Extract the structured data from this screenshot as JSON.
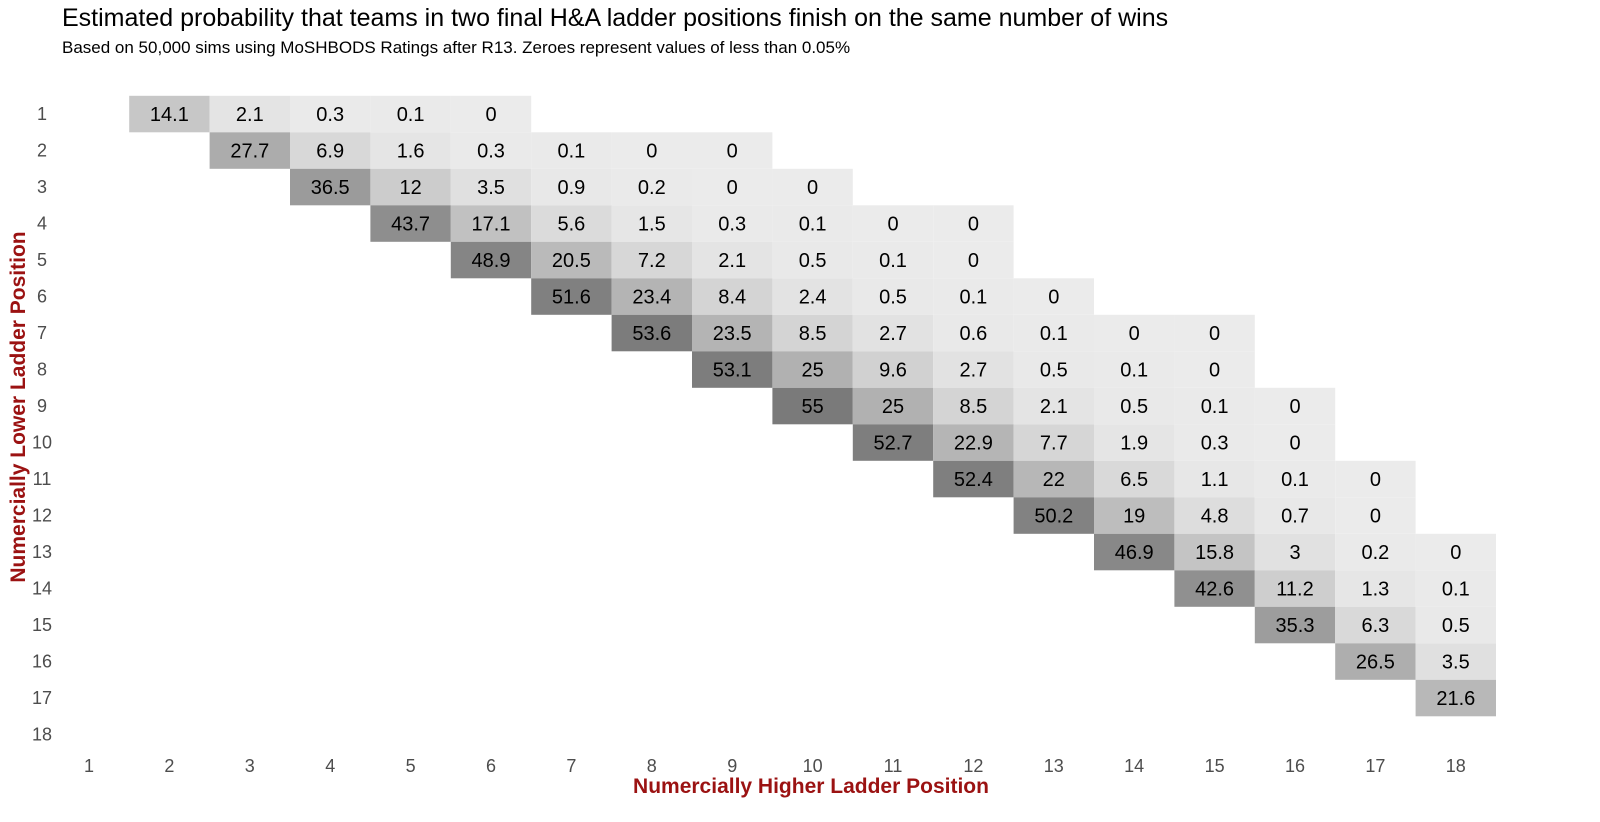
{
  "chart_data": {
    "type": "heatmap",
    "title": "Estimated probability that teams in two final H&A ladder positions finish on the same number of wins",
    "subtitle": "Based on 50,000 sims using MoSHBODS Ratings after R13. Zeroes represent values of less than 0.05%",
    "xlabel": "Numercially Higher Ladder Position",
    "ylabel": "Numercially Lower Ladder Position",
    "x_ticks": [
      "1",
      "2",
      "3",
      "4",
      "5",
      "6",
      "7",
      "8",
      "9",
      "10",
      "11",
      "12",
      "13",
      "14",
      "15",
      "16",
      "17",
      "18"
    ],
    "y_ticks": [
      "1",
      "2",
      "3",
      "4",
      "5",
      "6",
      "7",
      "8",
      "9",
      "10",
      "11",
      "12",
      "13",
      "14",
      "15",
      "16",
      "17",
      "18"
    ],
    "color_scale": {
      "low": "#ebebeb",
      "high": "#7a7a7a"
    },
    "grid": false,
    "legend": "none",
    "cells": [
      {
        "x": 2,
        "y": 1,
        "value": 14.1
      },
      {
        "x": 3,
        "y": 1,
        "value": 2.1
      },
      {
        "x": 4,
        "y": 1,
        "value": 0.3
      },
      {
        "x": 5,
        "y": 1,
        "value": 0.1
      },
      {
        "x": 6,
        "y": 1,
        "value": 0
      },
      {
        "x": 3,
        "y": 2,
        "value": 27.7
      },
      {
        "x": 4,
        "y": 2,
        "value": 6.9
      },
      {
        "x": 5,
        "y": 2,
        "value": 1.6
      },
      {
        "x": 6,
        "y": 2,
        "value": 0.3
      },
      {
        "x": 7,
        "y": 2,
        "value": 0.1
      },
      {
        "x": 8,
        "y": 2,
        "value": 0
      },
      {
        "x": 9,
        "y": 2,
        "value": 0
      },
      {
        "x": 4,
        "y": 3,
        "value": 36.5
      },
      {
        "x": 5,
        "y": 3,
        "value": 12
      },
      {
        "x": 6,
        "y": 3,
        "value": 3.5
      },
      {
        "x": 7,
        "y": 3,
        "value": 0.9
      },
      {
        "x": 8,
        "y": 3,
        "value": 0.2
      },
      {
        "x": 9,
        "y": 3,
        "value": 0
      },
      {
        "x": 10,
        "y": 3,
        "value": 0
      },
      {
        "x": 5,
        "y": 4,
        "value": 43.7
      },
      {
        "x": 6,
        "y": 4,
        "value": 17.1
      },
      {
        "x": 7,
        "y": 4,
        "value": 5.6
      },
      {
        "x": 8,
        "y": 4,
        "value": 1.5
      },
      {
        "x": 9,
        "y": 4,
        "value": 0.3
      },
      {
        "x": 10,
        "y": 4,
        "value": 0.1
      },
      {
        "x": 11,
        "y": 4,
        "value": 0
      },
      {
        "x": 12,
        "y": 4,
        "value": 0
      },
      {
        "x": 6,
        "y": 5,
        "value": 48.9
      },
      {
        "x": 7,
        "y": 5,
        "value": 20.5
      },
      {
        "x": 8,
        "y": 5,
        "value": 7.2
      },
      {
        "x": 9,
        "y": 5,
        "value": 2.1
      },
      {
        "x": 10,
        "y": 5,
        "value": 0.5
      },
      {
        "x": 11,
        "y": 5,
        "value": 0.1
      },
      {
        "x": 12,
        "y": 5,
        "value": 0
      },
      {
        "x": 7,
        "y": 6,
        "value": 51.6
      },
      {
        "x": 8,
        "y": 6,
        "value": 23.4
      },
      {
        "x": 9,
        "y": 6,
        "value": 8.4
      },
      {
        "x": 10,
        "y": 6,
        "value": 2.4
      },
      {
        "x": 11,
        "y": 6,
        "value": 0.5
      },
      {
        "x": 12,
        "y": 6,
        "value": 0.1
      },
      {
        "x": 13,
        "y": 6,
        "value": 0
      },
      {
        "x": 8,
        "y": 7,
        "value": 53.6
      },
      {
        "x": 9,
        "y": 7,
        "value": 23.5
      },
      {
        "x": 10,
        "y": 7,
        "value": 8.5
      },
      {
        "x": 11,
        "y": 7,
        "value": 2.7
      },
      {
        "x": 12,
        "y": 7,
        "value": 0.6
      },
      {
        "x": 13,
        "y": 7,
        "value": 0.1
      },
      {
        "x": 14,
        "y": 7,
        "value": 0
      },
      {
        "x": 15,
        "y": 7,
        "value": 0
      },
      {
        "x": 9,
        "y": 8,
        "value": 53.1
      },
      {
        "x": 10,
        "y": 8,
        "value": 25
      },
      {
        "x": 11,
        "y": 8,
        "value": 9.6
      },
      {
        "x": 12,
        "y": 8,
        "value": 2.7
      },
      {
        "x": 13,
        "y": 8,
        "value": 0.5
      },
      {
        "x": 14,
        "y": 8,
        "value": 0.1
      },
      {
        "x": 15,
        "y": 8,
        "value": 0
      },
      {
        "x": 10,
        "y": 9,
        "value": 55
      },
      {
        "x": 11,
        "y": 9,
        "value": 25
      },
      {
        "x": 12,
        "y": 9,
        "value": 8.5
      },
      {
        "x": 13,
        "y": 9,
        "value": 2.1
      },
      {
        "x": 14,
        "y": 9,
        "value": 0.5
      },
      {
        "x": 15,
        "y": 9,
        "value": 0.1
      },
      {
        "x": 16,
        "y": 9,
        "value": 0
      },
      {
        "x": 11,
        "y": 10,
        "value": 52.7
      },
      {
        "x": 12,
        "y": 10,
        "value": 22.9
      },
      {
        "x": 13,
        "y": 10,
        "value": 7.7
      },
      {
        "x": 14,
        "y": 10,
        "value": 1.9
      },
      {
        "x": 15,
        "y": 10,
        "value": 0.3
      },
      {
        "x": 16,
        "y": 10,
        "value": 0
      },
      {
        "x": 12,
        "y": 11,
        "value": 52.4
      },
      {
        "x": 13,
        "y": 11,
        "value": 22
      },
      {
        "x": 14,
        "y": 11,
        "value": 6.5
      },
      {
        "x": 15,
        "y": 11,
        "value": 1.1
      },
      {
        "x": 16,
        "y": 11,
        "value": 0.1
      },
      {
        "x": 17,
        "y": 11,
        "value": 0
      },
      {
        "x": 13,
        "y": 12,
        "value": 50.2
      },
      {
        "x": 14,
        "y": 12,
        "value": 19
      },
      {
        "x": 15,
        "y": 12,
        "value": 4.8
      },
      {
        "x": 16,
        "y": 12,
        "value": 0.7
      },
      {
        "x": 17,
        "y": 12,
        "value": 0
      },
      {
        "x": 14,
        "y": 13,
        "value": 46.9
      },
      {
        "x": 15,
        "y": 13,
        "value": 15.8
      },
      {
        "x": 16,
        "y": 13,
        "value": 3
      },
      {
        "x": 17,
        "y": 13,
        "value": 0.2
      },
      {
        "x": 18,
        "y": 13,
        "value": 0
      },
      {
        "x": 15,
        "y": 14,
        "value": 42.6
      },
      {
        "x": 16,
        "y": 14,
        "value": 11.2
      },
      {
        "x": 17,
        "y": 14,
        "value": 1.3
      },
      {
        "x": 18,
        "y": 14,
        "value": 0.1
      },
      {
        "x": 16,
        "y": 15,
        "value": 35.3
      },
      {
        "x": 17,
        "y": 15,
        "value": 6.3
      },
      {
        "x": 18,
        "y": 15,
        "value": 0.5
      },
      {
        "x": 17,
        "y": 16,
        "value": 26.5
      },
      {
        "x": 18,
        "y": 16,
        "value": 3.5
      },
      {
        "x": 18,
        "y": 17,
        "value": 21.6
      }
    ]
  }
}
